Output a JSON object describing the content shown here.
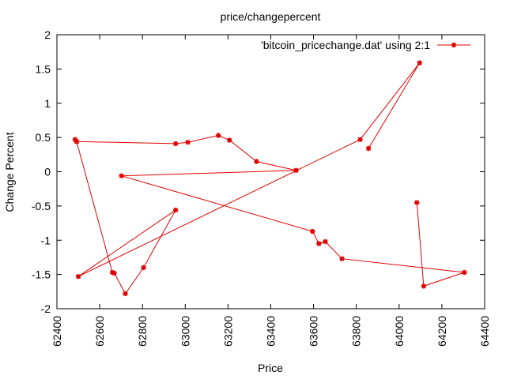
{
  "chart_data": {
    "type": "line",
    "title": "price/changepercent",
    "xlabel": "Price",
    "ylabel": "Change Percent",
    "xlim": [
      62400,
      64400
    ],
    "ylim": [
      -2,
      2
    ],
    "xticks": [
      "62400",
      "62600",
      "62800",
      "63000",
      "63200",
      "63400",
      "63600",
      "63800",
      "64000",
      "64200",
      "64400"
    ],
    "yticks": [
      "2",
      "1.5",
      "1",
      "0.5",
      "0",
      "-0.5",
      "-1",
      "-1.5",
      "-2"
    ],
    "grid": false,
    "legend_position": "top-right",
    "color": "#e00000",
    "series": [
      {
        "name": "'bitcoin_pricechange.dat' using 2:1",
        "points": [
          [
            64083,
            -0.45
          ],
          [
            64115,
            -1.67
          ],
          [
            64305,
            -1.47
          ],
          [
            63733,
            -1.27
          ],
          [
            63655,
            -1.02
          ],
          [
            63625,
            -1.05
          ],
          [
            63595,
            -0.87
          ]
        ],
        "points_b": [
          [
            62702,
            -0.06
          ],
          [
            63518,
            0.02
          ],
          [
            63333,
            0.15
          ],
          [
            63207,
            0.46
          ],
          [
            63155,
            0.53
          ],
          [
            63012,
            0.43
          ],
          [
            62955,
            0.41
          ],
          [
            62492,
            0.44
          ],
          [
            62485,
            0.47
          ],
          [
            62492,
            0.44
          ],
          [
            62659,
            -1.47
          ],
          [
            62668,
            -1.48
          ],
          [
            62720,
            -1.78
          ],
          [
            62805,
            -1.4
          ],
          [
            62955,
            -0.56
          ],
          [
            62500,
            -1.53
          ]
        ],
        "points_c": [
          [
            63818,
            0.47
          ],
          [
            64096,
            1.59
          ],
          [
            63857,
            0.34
          ]
        ]
      }
    ]
  }
}
